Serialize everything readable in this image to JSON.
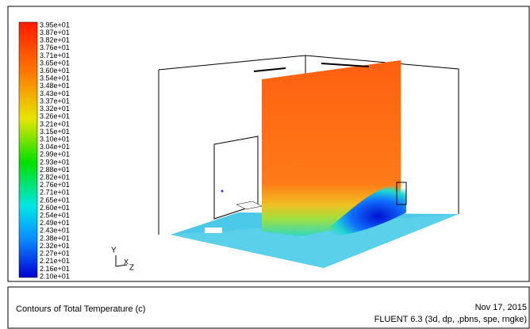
{
  "colorbar": {
    "labels": [
      "3.95e+01",
      "3.87e+01",
      "3.82e+01",
      "3.76e+01",
      "3.71e+01",
      "3.65e+01",
      "3.60e+01",
      "3.54e+01",
      "3.48e+01",
      "3.43e+01",
      "3.37e+01",
      "3.32e+01",
      "3.26e+01",
      "3.21e+01",
      "3.15e+01",
      "3.10e+01",
      "3.04e+01",
      "2.99e+01",
      "2.93e+01",
      "2.88e+01",
      "2.82e+01",
      "2.76e+01",
      "2.71e+01",
      "2.65e+01",
      "2.60e+01",
      "2.54e+01",
      "2.49e+01",
      "2.43e+01",
      "2.38e+01",
      "2.32e+01",
      "2.27e+01",
      "2.21e+01",
      "2.16e+01",
      "2.10e+01"
    ]
  },
  "axes": {
    "y": "Y",
    "x": "X",
    "z": "Z"
  },
  "footer": {
    "title": "Contours of Total Temperature (c)",
    "date": "Nov 17, 2015",
    "version": "FLUENT 6.3 (3d, dp, ,pbns, spe, rngke)"
  }
}
